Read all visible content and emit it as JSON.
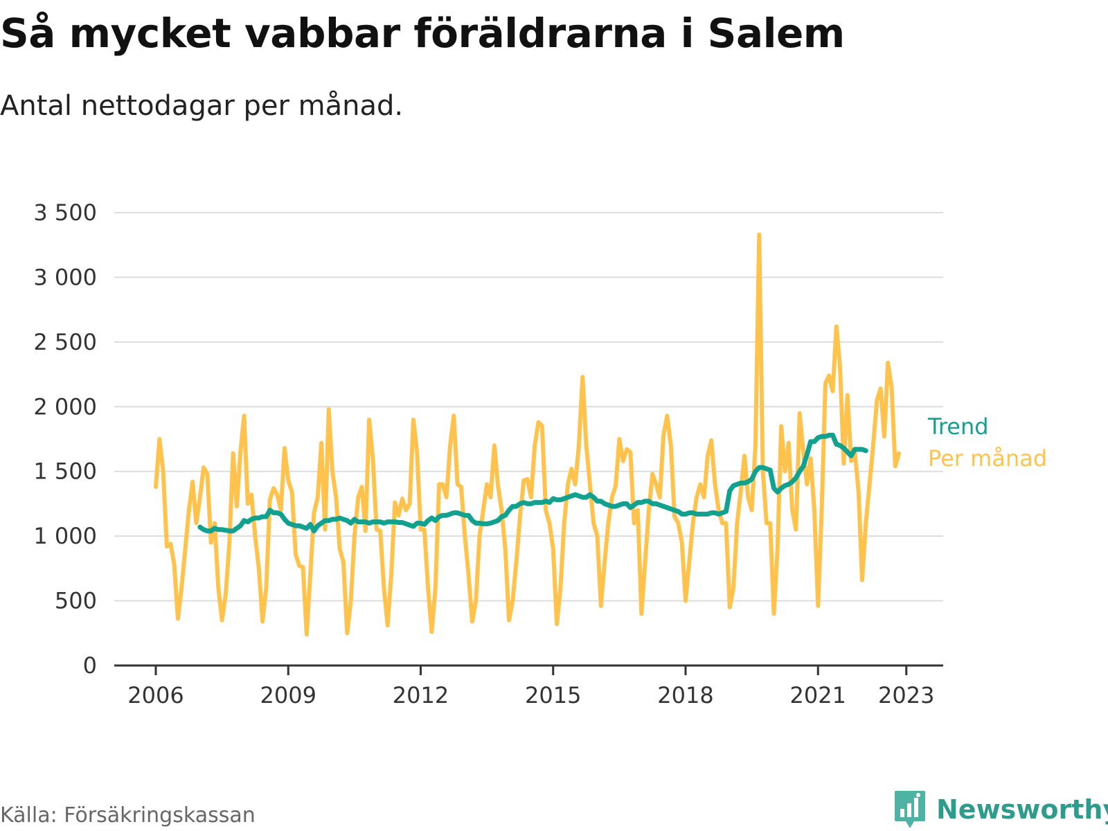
{
  "header": {
    "title": "Så mycket vabbar föräldrarna i Salem",
    "subtitle": "Antal nettodagar per månad."
  },
  "footer": {
    "source": "Källa: Försäkringskassan",
    "brand": "Newsworthy",
    "brand_icon": "bar-chart-icon"
  },
  "colors": {
    "monthly": "#ffc34d",
    "trend": "#13a18f",
    "grid": "#dddddd",
    "axis": "#333333"
  },
  "chart_data": {
    "type": "line",
    "title": "Så mycket vabbar föräldrarna i Salem",
    "subtitle": "Antal nettodagar per månad.",
    "ylim": [
      0,
      3500
    ],
    "y_ticks": [
      0,
      500,
      1000,
      1500,
      2000,
      2500,
      3000,
      3500
    ],
    "y_tick_labels": [
      "0",
      "500",
      "1 000",
      "1 500",
      "2 000",
      "2 500",
      "3 000",
      "3 500"
    ],
    "x_ticks": [
      2006,
      2009,
      2012,
      2015,
      2018,
      2021,
      2023
    ],
    "x_tick_labels": [
      "2006",
      "2009",
      "2012",
      "2015",
      "2018",
      "2021",
      "2023"
    ],
    "x_range": [
      "2006-01",
      "2023-05"
    ],
    "grid": "horizontal",
    "legend": "direct labels at right end of lines",
    "series": [
      {
        "name": "Per månad",
        "start": "2006-01",
        "values": [
          1380,
          1750,
          1500,
          920,
          940,
          780,
          360,
          600,
          900,
          1200,
          1420,
          1100,
          1300,
          1530,
          1480,
          950,
          1100,
          600,
          350,
          550,
          950,
          1640,
          1230,
          1650,
          1930,
          1250,
          1320,
          1000,
          750,
          340,
          600,
          1280,
          1370,
          1320,
          1200,
          1680,
          1430,
          1340,
          860,
          770,
          760,
          240,
          700,
          1180,
          1300,
          1720,
          1050,
          1980,
          1500,
          1300,
          900,
          800,
          250,
          500,
          1000,
          1300,
          1380,
          1040,
          1900,
          1600,
          1050,
          1040,
          600,
          310,
          700,
          1260,
          1160,
          1290,
          1200,
          1250,
          1900,
          1650,
          1050,
          1050,
          600,
          260,
          600,
          1400,
          1400,
          1300,
          1700,
          1930,
          1400,
          1380,
          1000,
          700,
          340,
          500,
          1000,
          1200,
          1400,
          1300,
          1700,
          1390,
          1200,
          900,
          350,
          500,
          800,
          1150,
          1430,
          1440,
          1300,
          1700,
          1880,
          1850,
          1200,
          1100,
          900,
          320,
          600,
          1100,
          1400,
          1520,
          1400,
          1700,
          2230,
          1700,
          1400,
          1100,
          1000,
          460,
          800,
          1100,
          1300,
          1390,
          1750,
          1580,
          1670,
          1650,
          1100,
          1200,
          400,
          800,
          1200,
          1480,
          1400,
          1300,
          1780,
          1930,
          1700,
          1150,
          1100,
          950,
          500,
          800,
          1100,
          1300,
          1400,
          1300,
          1620,
          1740,
          1400,
          1200,
          1100,
          1100,
          450,
          600,
          1100,
          1350,
          1620,
          1300,
          1200,
          1700,
          3330,
          1500,
          1100,
          1100,
          400,
          900,
          1850,
          1500,
          1720,
          1200,
          1050,
          1950,
          1650,
          1400,
          1600,
          1200,
          460,
          1200,
          2180,
          2240,
          2120,
          2620,
          2300,
          1560,
          2090,
          1580,
          1650,
          1350,
          660,
          1100,
          1400,
          1700,
          2050,
          2140,
          1770,
          2340,
          2150,
          1540,
          1640
        ]
      },
      {
        "name": "Trend",
        "start": "2007-01",
        "values": [
          1070,
          1050,
          1040,
          1040,
          1060,
          1050,
          1050,
          1045,
          1040,
          1040,
          1060,
          1080,
          1120,
          1110,
          1130,
          1140,
          1140,
          1150,
          1150,
          1200,
          1180,
          1180,
          1170,
          1130,
          1100,
          1090,
          1080,
          1080,
          1070,
          1060,
          1090,
          1040,
          1080,
          1100,
          1120,
          1120,
          1130,
          1130,
          1140,
          1130,
          1120,
          1100,
          1130,
          1110,
          1110,
          1110,
          1100,
          1110,
          1110,
          1110,
          1100,
          1110,
          1110,
          1110,
          1105,
          1105,
          1095,
          1085,
          1075,
          1100,
          1100,
          1090,
          1120,
          1140,
          1120,
          1150,
          1160,
          1160,
          1170,
          1180,
          1180,
          1170,
          1160,
          1160,
          1120,
          1100,
          1100,
          1095,
          1095,
          1100,
          1110,
          1120,
          1150,
          1160,
          1200,
          1230,
          1230,
          1250,
          1260,
          1250,
          1250,
          1260,
          1260,
          1260,
          1270,
          1260,
          1290,
          1280,
          1280,
          1290,
          1300,
          1310,
          1320,
          1310,
          1300,
          1300,
          1320,
          1300,
          1270,
          1270,
          1250,
          1240,
          1230,
          1230,
          1240,
          1250,
          1250,
          1220,
          1240,
          1260,
          1260,
          1270,
          1270,
          1250,
          1250,
          1240,
          1230,
          1220,
          1210,
          1200,
          1190,
          1170,
          1170,
          1180,
          1180,
          1170,
          1170,
          1170,
          1170,
          1180,
          1180,
          1170,
          1180,
          1190,
          1350,
          1390,
          1400,
          1410,
          1410,
          1420,
          1440,
          1500,
          1530,
          1530,
          1520,
          1510,
          1370,
          1340,
          1370,
          1390,
          1400,
          1420,
          1450,
          1500,
          1540,
          1630,
          1730,
          1730,
          1760,
          1770,
          1770,
          1780,
          1780,
          1710,
          1700,
          1680,
          1650,
          1620,
          1670,
          1670,
          1670,
          1660
        ]
      }
    ]
  }
}
